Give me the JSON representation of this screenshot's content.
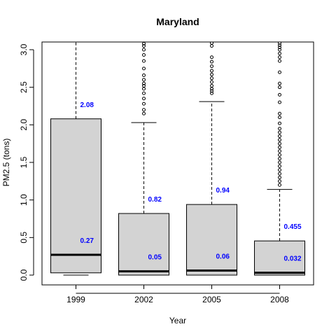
{
  "chart_data": {
    "type": "box",
    "title": "Maryland",
    "xlabel": "Year",
    "ylabel": "PM2.5 (tons)",
    "ylim": [
      -0.1,
      3.1
    ],
    "yticks": [
      0.0,
      0.5,
      1.0,
      1.5,
      2.0,
      2.5,
      3.0
    ],
    "ytick_labels": [
      "0.0",
      "0.5",
      "1.0",
      "1.5",
      "2.0",
      "2.5",
      "3.0"
    ],
    "categories": [
      "1999",
      "2002",
      "2005",
      "2008"
    ],
    "box_fill": "#d3d3d3",
    "annotation_color": "#0000ff",
    "boxes": [
      {
        "category": "1999",
        "q1": 0.03,
        "median": 0.27,
        "q3": 2.08,
        "whisker_low": 0.0,
        "whisker_high": 5.0,
        "label_q3": "2.08",
        "label_median": "0.27",
        "outliers": []
      },
      {
        "category": "2002",
        "q1": 0.0,
        "median": 0.05,
        "q3": 0.82,
        "whisker_low": 0.0,
        "whisker_high": 2.03,
        "label_q3": "0.82",
        "label_median": "0.05",
        "outliers": [
          2.15,
          2.2,
          2.28,
          2.35,
          2.42,
          2.48,
          2.52,
          2.55,
          2.6,
          2.66,
          2.75,
          2.85,
          2.93,
          3.0,
          3.05,
          3.08
        ]
      },
      {
        "category": "2005",
        "q1": 0.0,
        "median": 0.06,
        "q3": 0.94,
        "whisker_low": 0.0,
        "whisker_high": 2.31,
        "label_q3": "0.94",
        "label_median": "0.06",
        "outliers": [
          2.42,
          2.45,
          2.48,
          2.52,
          2.57,
          2.62,
          2.67,
          2.72,
          2.78,
          2.84,
          2.9,
          3.05,
          3.09
        ]
      },
      {
        "category": "2008",
        "q1": 0.0,
        "median": 0.032,
        "q3": 0.455,
        "whisker_low": 0.0,
        "whisker_high": 1.14,
        "label_q3": "0.455",
        "label_median": "0.032",
        "outliers": [
          1.2,
          1.25,
          1.3,
          1.35,
          1.4,
          1.45,
          1.5,
          1.55,
          1.6,
          1.65,
          1.7,
          1.75,
          1.8,
          1.85,
          1.9,
          1.95,
          2.02,
          2.1,
          2.15,
          2.3,
          2.4,
          2.5,
          2.55,
          2.7,
          2.85,
          2.9,
          2.95,
          3.0,
          3.03,
          3.06,
          3.09
        ]
      }
    ]
  }
}
